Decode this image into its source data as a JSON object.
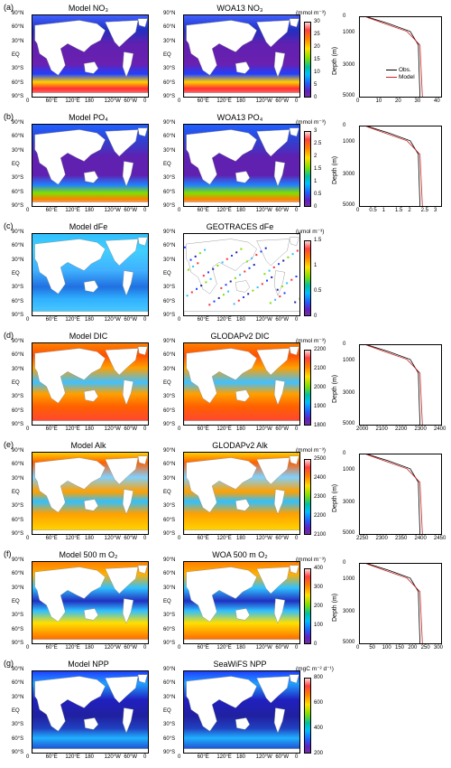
{
  "rows": [
    {
      "letter": "(a)",
      "left_title": "Model NO₃",
      "right_title": "WOA13 NO₃",
      "unit": "(mmol m⁻³)",
      "cbar_ticks": [
        "30",
        "25",
        "20",
        "15",
        "10",
        "5",
        "0"
      ],
      "profile": true,
      "prof_xticks": [
        "0",
        "10",
        "20",
        "30",
        "40"
      ],
      "prof_yticks": [
        "0",
        "1000",
        "3000",
        "5000"
      ],
      "legend": [
        "Obs.",
        "Model"
      ]
    },
    {
      "letter": "(b)",
      "left_title": "Model PO₄",
      "right_title": "WOA13 PO₄",
      "unit": "(mmol m⁻³)",
      "cbar_ticks": [
        "3",
        "2.5",
        "2",
        "1.5",
        "1",
        "0.5",
        "0"
      ],
      "profile": true,
      "prof_xticks": [
        "0",
        "0.5",
        "1",
        "1.5",
        "2",
        "2.5",
        "3"
      ],
      "prof_yticks": [
        "0",
        "1000",
        "3000",
        "5000"
      ]
    },
    {
      "letter": "(c)",
      "left_title": "Model dFe",
      "right_title": "GEOTRACES dFe",
      "unit": "(μmol m⁻³)",
      "cbar_ticks": [
        "1.5",
        "1",
        "0.5",
        "0"
      ],
      "profile": false
    },
    {
      "letter": "(d)",
      "left_title": "Model DIC",
      "right_title": "GLODAPv2 DIC",
      "unit": "(mmol m⁻³)",
      "cbar_ticks": [
        "2200",
        "2100",
        "2000",
        "1900",
        "1800"
      ],
      "profile": true,
      "prof_xticks": [
        "2000",
        "2100",
        "2200",
        "2300",
        "2400"
      ],
      "prof_yticks": [
        "0",
        "1000",
        "3000",
        "5000"
      ]
    },
    {
      "letter": "(e)",
      "left_title": "Model Alk",
      "right_title": "GLODAPv2 Alk",
      "unit": "(mmol m⁻³)",
      "cbar_ticks": [
        "2500",
        "2400",
        "2300",
        "2200",
        "2100"
      ],
      "profile": true,
      "prof_xticks": [
        "2250",
        "2300",
        "2350",
        "2400",
        "2450"
      ],
      "prof_yticks": [
        "0",
        "1000",
        "3000",
        "5000"
      ]
    },
    {
      "letter": "(f)",
      "left_title": "Model 500 m O₂",
      "right_title": "WOA 500 m O₂",
      "unit": "(mmol m⁻³)",
      "cbar_ticks": [
        "400",
        "300",
        "200",
        "100",
        "0"
      ],
      "profile": true,
      "prof_xticks": [
        "0",
        "50",
        "100",
        "150",
        "200",
        "250",
        "300"
      ],
      "prof_yticks": [
        "0",
        "1000",
        "3000",
        "5000"
      ]
    },
    {
      "letter": "(g)",
      "left_title": "Model NPP",
      "right_title": "SeaWiFS NPP",
      "unit": "(mgC m⁻² d⁻¹)",
      "cbar_ticks": [
        "800",
        "600",
        "400",
        "200"
      ],
      "profile": false
    }
  ],
  "map_lat_ticks": [
    "90°N",
    "60°N",
    "30°N",
    "EQ",
    "30°S",
    "60°S",
    "90°S"
  ],
  "map_lon_ticks": [
    "0",
    "60°E",
    "120°E",
    "180",
    "120°W",
    "60°W",
    "0"
  ],
  "depth_label": "Depth (m)",
  "colors": {
    "model": "#cc2222",
    "obs": "#000000"
  }
}
